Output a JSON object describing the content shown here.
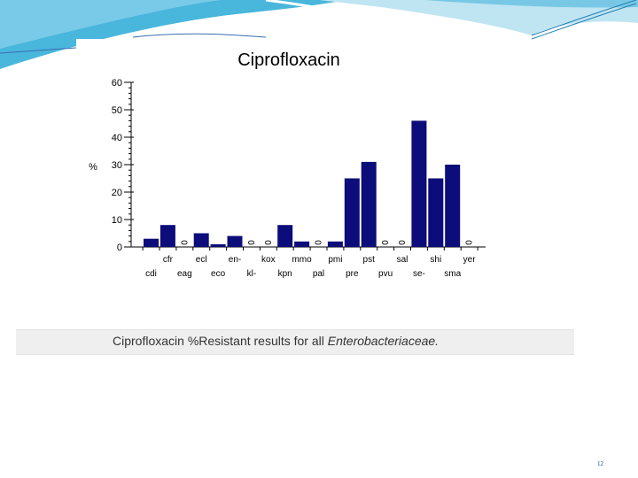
{
  "chart_data": {
    "type": "bar",
    "title": "Ciprofloxacin",
    "ylabel": "%",
    "xlabel": "",
    "ylim": [
      0,
      60
    ],
    "yticks": [
      0,
      10,
      20,
      30,
      40,
      50,
      60
    ],
    "categories": [
      "cdi",
      "cfr",
      "eag",
      "ecl",
      "eco",
      "en-",
      "kl-",
      "kox",
      "kpn",
      "mmo",
      "pal",
      "pmi",
      "pre",
      "pst",
      "pvu",
      "sal",
      "se-",
      "shi",
      "sma",
      "yer"
    ],
    "values": [
      3,
      8,
      0,
      5,
      1,
      4,
      0,
      0,
      8,
      2,
      0,
      2,
      25,
      31,
      0,
      0,
      46,
      25,
      30,
      0
    ],
    "zero_label": "0",
    "bar_color": "#0c0c7a",
    "grid": false
  },
  "caption": {
    "prefix": "Ciprofloxacin %Resistant results for all ",
    "italic": "Enterobacteriaceae."
  },
  "page_number": "12",
  "colors": {
    "accent": "#2aa9d6",
    "light_accent": "#bfe4f2"
  }
}
